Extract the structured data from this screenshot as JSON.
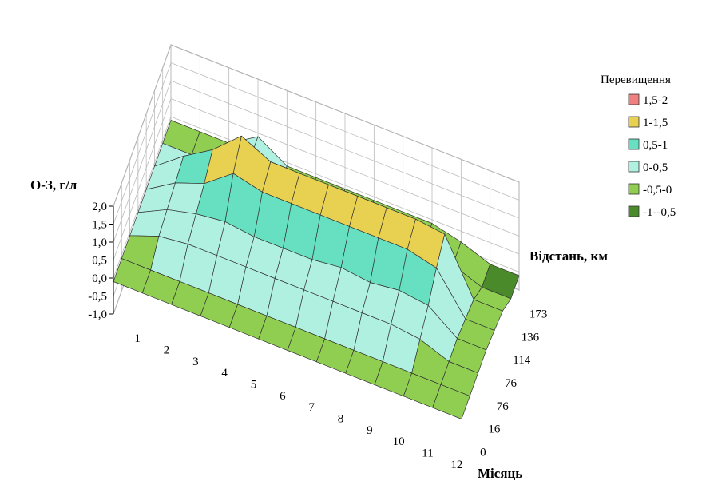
{
  "chart_data": {
    "type": "surface",
    "zlabel": "О-З, г/л",
    "xlabel": "Місяць",
    "ylabel": "Відстань, км",
    "z_ticks": [
      "2,0",
      "1,5",
      "1,0",
      "0,5",
      "0,0",
      "-0,5",
      "-1,0"
    ],
    "z_range": [
      -1,
      2
    ],
    "months": [
      "1",
      "2",
      "3",
      "4",
      "5",
      "6",
      "7",
      "8",
      "9",
      "10",
      "11",
      "12"
    ],
    "distances": [
      "0",
      "16",
      "76",
      "76",
      "114",
      "136",
      "173"
    ],
    "legend_title": "Перевищення",
    "legend": [
      {
        "label": "1,5-2",
        "color": "#f08080"
      },
      {
        "label": "1-1,5",
        "color": "#e8d050"
      },
      {
        "label": "0,5-1",
        "color": "#66e0c0"
      },
      {
        "label": "0-0,5",
        "color": "#b0f0e0"
      },
      {
        "label": "-0,5-0",
        "color": "#8fce50"
      },
      {
        "label": "-1--0,5",
        "color": "#4a8a2a"
      }
    ],
    "grid": true,
    "legend_position": "right",
    "z_values": [
      [
        -0.1,
        -0.1,
        -0.1,
        -0.1,
        -0.1,
        -0.1,
        -0.1,
        -0.1,
        -0.1,
        -0.1,
        -0.1,
        -0.1
      ],
      [
        -0.1,
        -0.1,
        -0.1,
        -0.1,
        -0.1,
        -0.1,
        -0.1,
        -0.1,
        -0.1,
        -0.1,
        -0.1,
        -0.1
      ],
      [
        -0.1,
        0.2,
        0.3,
        0.3,
        0.3,
        0.3,
        0.3,
        0.3,
        0.3,
        0.3,
        0.2,
        -0.1
      ],
      [
        -0.1,
        0.3,
        0.5,
        0.6,
        0.5,
        0.5,
        0.5,
        0.6,
        0.5,
        0.6,
        0.5,
        -0.1
      ],
      [
        -0.1,
        0.4,
        0.7,
        1.3,
        1.1,
        1.1,
        1.1,
        1.1,
        1.1,
        1.1,
        0.9,
        -0.2
      ],
      [
        -0.1,
        0.5,
        1.0,
        1.7,
        1.3,
        1.3,
        1.3,
        1.3,
        1.3,
        1.3,
        1.2,
        -0.3
      ],
      [
        -0.1,
        -0.1,
        -0.1,
        0.4,
        -0.1,
        -0.1,
        -0.1,
        -0.1,
        -0.1,
        -0.1,
        -0.3,
        -0.6
      ]
    ]
  }
}
